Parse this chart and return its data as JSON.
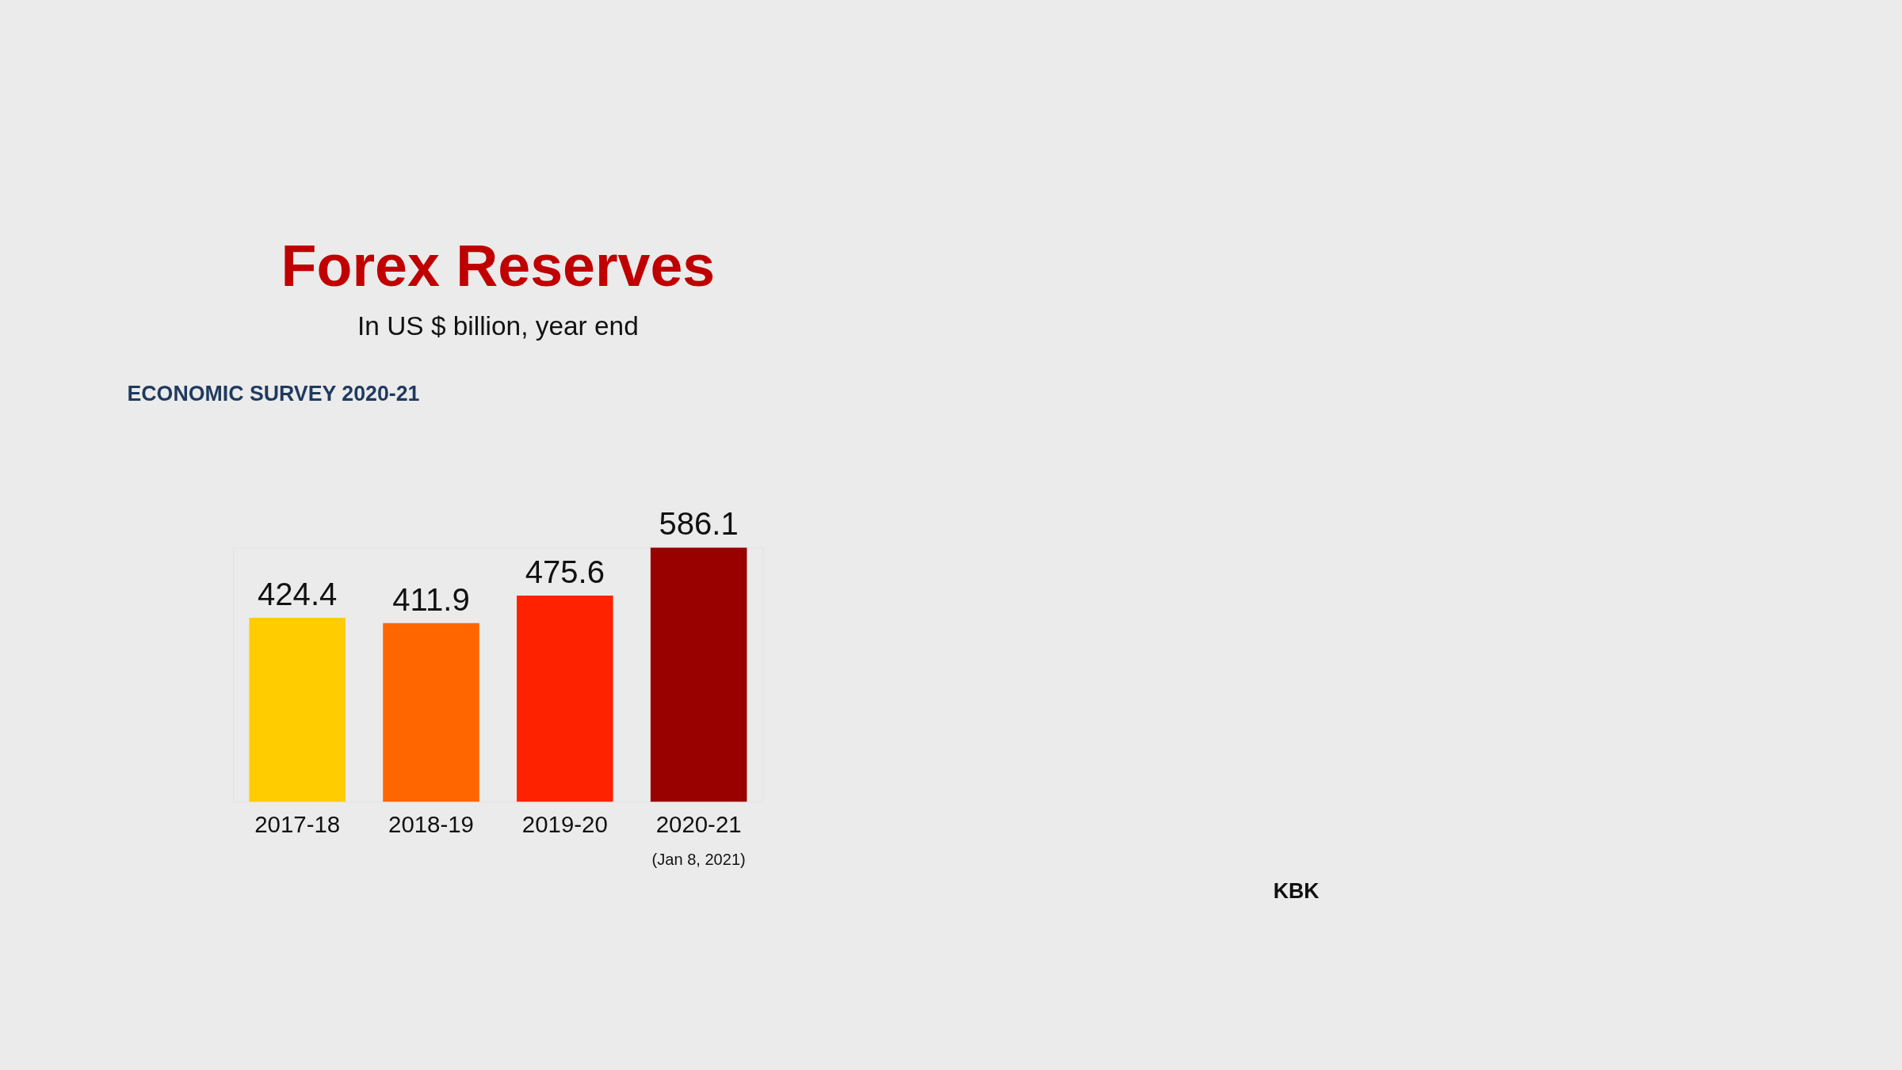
{
  "chart_data": {
    "type": "bar",
    "title": "Forex Reserves",
    "subtitle": "In US $ billion, year end",
    "categories": [
      "2017-18",
      "2018-19",
      "2019-20",
      "2020-21"
    ],
    "values": [
      424.4,
      411.9,
      475.6,
      586.1
    ],
    "colors": [
      "#ffcc00",
      "#ff6600",
      "#ff2200",
      "#990000"
    ],
    "data_labels": true,
    "annotations": [
      "ECONOMIC SURVEY 2020-21",
      "(Jan 8, 2021)",
      "KBK"
    ]
  }
}
